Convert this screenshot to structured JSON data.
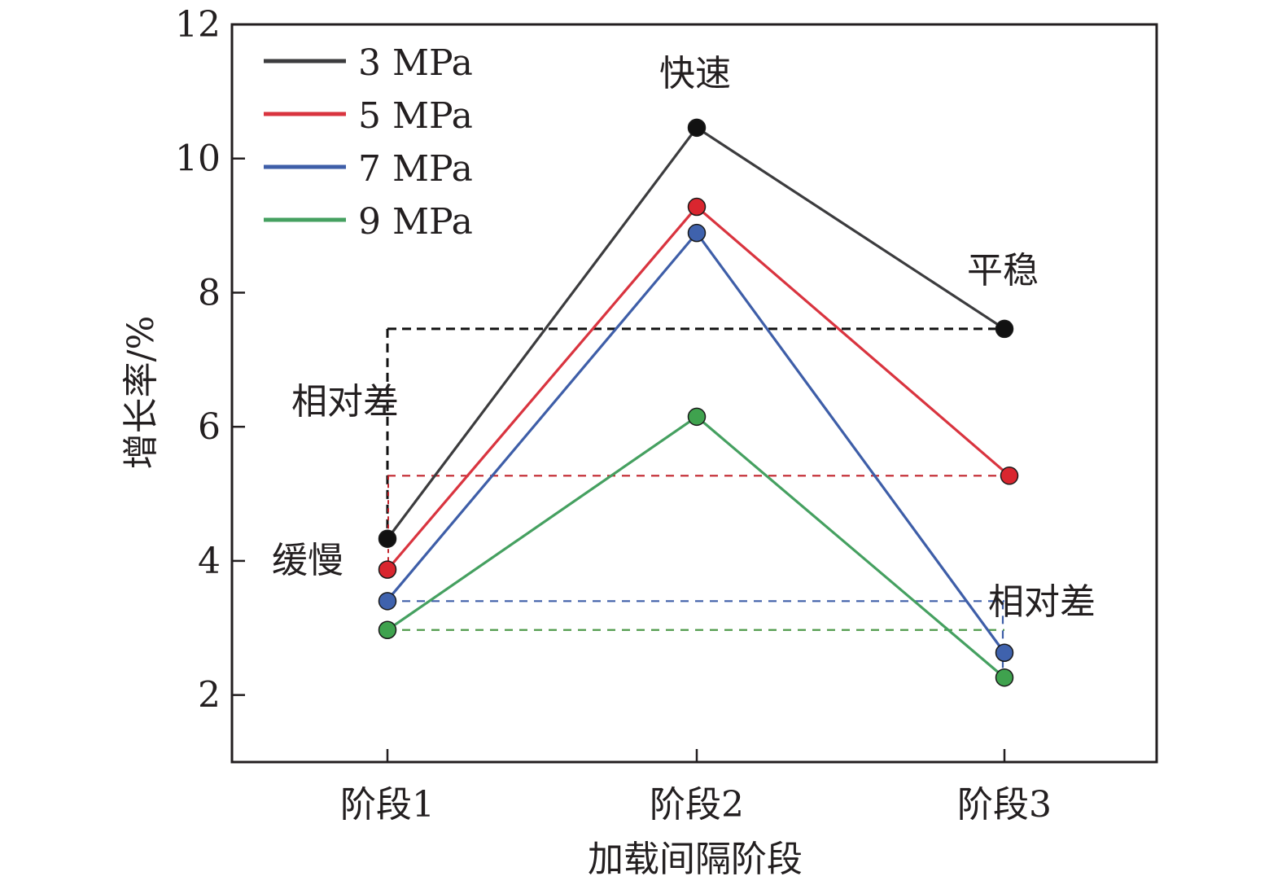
{
  "chart_data": {
    "type": "line",
    "title": "",
    "xlabel": "加载间隔阶段",
    "ylabel": "增长率/%",
    "categories": [
      "阶段1",
      "阶段2",
      "阶段3"
    ],
    "ylim": [
      1,
      12
    ],
    "yticks": [
      2,
      4,
      6,
      8,
      10,
      12
    ],
    "ytick_labels": [
      "2",
      "4",
      "6",
      "8",
      "10",
      "12"
    ],
    "grid": false,
    "legend_position": "top-left",
    "series": [
      {
        "name": "3 MPa",
        "color": "#3c3c3e",
        "marker_color": "#111111",
        "values": [
          4.33,
          10.46,
          7.46
        ]
      },
      {
        "name": "5 MPa",
        "color": "#d9343f",
        "marker_color": "#d9262f",
        "values": [
          3.87,
          9.28,
          5.27
        ]
      },
      {
        "name": "7 MPa",
        "color": "#3e5ea8",
        "marker_color": "#3f62ad",
        "values": [
          3.4,
          8.89,
          2.63
        ]
      },
      {
        "name": "9 MPa",
        "color": "#45a060",
        "marker_color": "#3fa24e",
        "values": [
          2.97,
          6.15,
          2.26
        ]
      }
    ],
    "reference_lines": [
      {
        "series": "3 MPa",
        "y": 7.46,
        "color": "#111111",
        "from_category": 0,
        "to_category": 2,
        "style": "dashed"
      },
      {
        "series": "5 MPa",
        "y": 5.27,
        "color": "#c2262e",
        "from_category": 0,
        "to_category": 2,
        "style": "dashed"
      },
      {
        "series": "7 MPa",
        "y": 3.4,
        "color": "#3e5ea8",
        "from_category": 0,
        "to_category": 2,
        "style": "dashed"
      },
      {
        "series": "9 MPa",
        "y": 2.97,
        "color": "#4f9a4a",
        "from_category": 0,
        "to_category": 2,
        "style": "dashed"
      }
    ],
    "annotations": [
      {
        "text": "快速",
        "category": 1,
        "y": 11.2,
        "orientation": "horizontal"
      },
      {
        "text": "平稳",
        "category": 2,
        "y": 8.3,
        "orientation": "horizontal"
      },
      {
        "text": "缓慢",
        "category": 0,
        "y": 4.0,
        "orientation": "horizontal",
        "side": "left"
      },
      {
        "text": "相对差",
        "category": 0,
        "y": 5.8,
        "orientation": "vertical",
        "side": "left"
      },
      {
        "text": "相对差",
        "category": 2,
        "y": 2.6,
        "orientation": "vertical",
        "side": "right"
      }
    ]
  }
}
